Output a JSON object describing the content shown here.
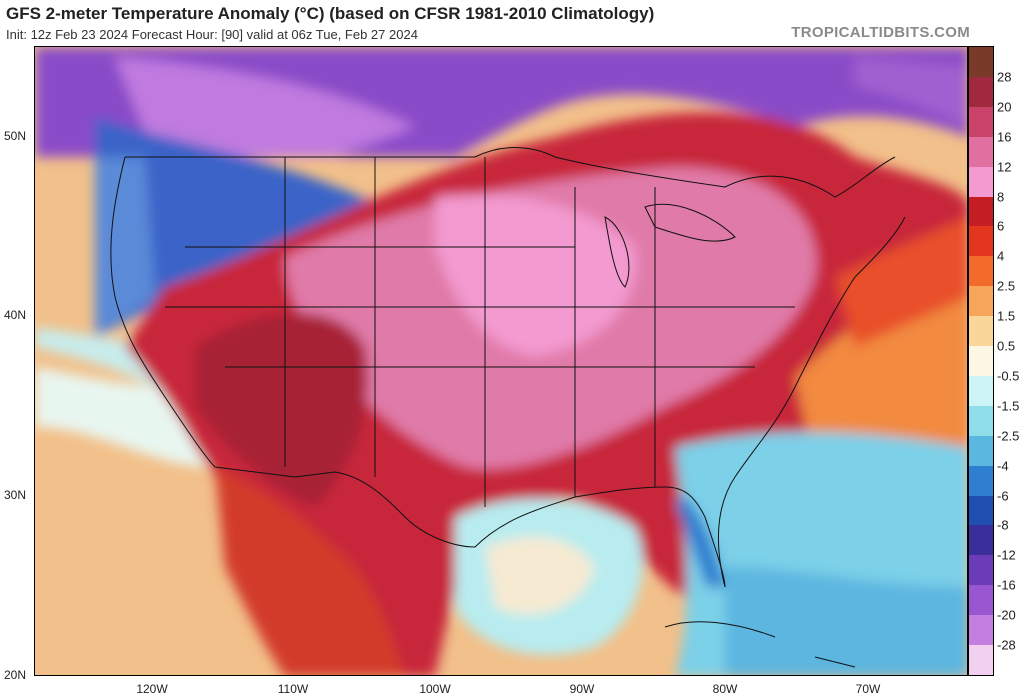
{
  "header": {
    "title": "GFS 2-meter Temperature Anomaly (°C) (based on CFSR 1981-2010 Climatology)",
    "subtitle": "Init: 12z Feb 23 2024   Forecast Hour: [90]   valid at 06z Tue, Feb 27 2024",
    "brand": "TROPICALTIDBITS.COM"
  },
  "axes": {
    "lat_labels": [
      "50N",
      "40N",
      "30N",
      "20N"
    ],
    "lon_labels": [
      "120W",
      "110W",
      "100W",
      "90W",
      "80W",
      "70W"
    ]
  },
  "colorbar": {
    "labels": [
      "28",
      "20",
      "16",
      "12",
      "8",
      "6",
      "4",
      "2.5",
      "1.5",
      "0.5",
      "-0.5",
      "-1.5",
      "-2.5",
      "-4",
      "-6",
      "-8",
      "-12",
      "-16",
      "-20",
      "-28"
    ],
    "colors": [
      "#7a3a2a",
      "#a0293f",
      "#c8426a",
      "#e070a0",
      "#f39ad0",
      "#c41e24",
      "#e2361f",
      "#f26b2a",
      "#f7a55a",
      "#fbd69b",
      "#fff7e6",
      "#cdf4f4",
      "#8fdde8",
      "#5bb6e0",
      "#2f7fd0",
      "#1f4fb0",
      "#3a2f9a",
      "#6b3bb8",
      "#9a55d0",
      "#c47ee0",
      "#f2d0f0"
    ]
  },
  "map": {
    "region": "Continental United States",
    "colors": {
      "ocean_pacific": "#f2c08a",
      "ocean_atlantic_warm": "#f5a055",
      "gulf_cool": "#b8ecf0",
      "caribbean_cool": "#7cd0e8",
      "plains_pink": "#e07aa8",
      "southwest_red": "#c0283a",
      "northwest_blue": "#3a64c8",
      "canada_purple": "#8a4cc8",
      "border_line": "#111111"
    }
  }
}
